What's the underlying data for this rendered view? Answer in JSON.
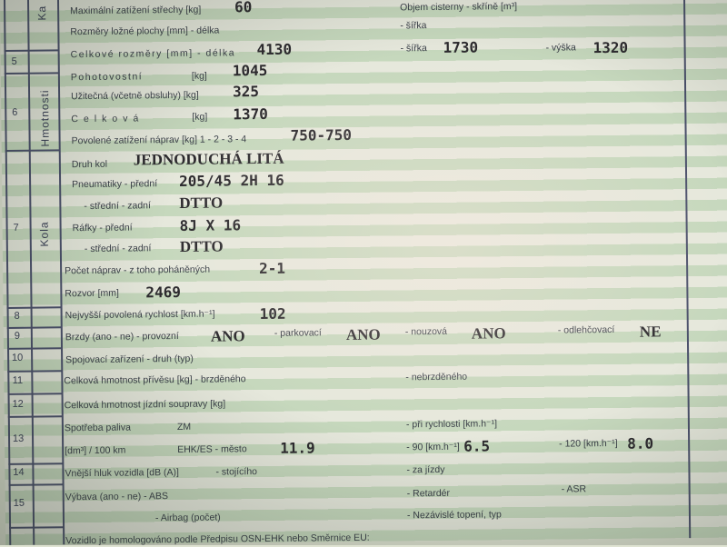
{
  "section_labels": {
    "ka": "Ka",
    "hmotnosti": "Hmotnosti",
    "kola": "Kola"
  },
  "row_numbers": [
    "5",
    "6",
    "7",
    "8",
    "9",
    "10",
    "11",
    "12",
    "13",
    "14",
    "15"
  ],
  "fields": {
    "strecha_label": "Maximální zatížení střechy [kg]",
    "strecha_value": "60",
    "cisterna_label": "Objem cisterny - skříně [m³]",
    "lozna_delka_label": "Rozměry ložné plochy [mm] - délka",
    "lozna_sirka_label": "- šířka",
    "celk_delka_label": "Celkové rozměry [mm] - délka",
    "celk_delka_value": "4130",
    "celk_sirka_label": "- šířka",
    "celk_sirka_value": "1730",
    "celk_vyska_label": "- výška",
    "celk_vyska_value": "1320",
    "pohot_label": "Pohotovostní",
    "pohot_unit": "[kg]",
    "pohot_value": "1045",
    "uzit_label": "Užitečná (včetně obsluhy) [kg]",
    "uzit_value": "325",
    "celkova_label": "Celková",
    "celkova_unit": "[kg]",
    "celkova_value": "1370",
    "naprav_zat_label": "Povolené zatížení náprav [kg] 1 - 2 - 3 - 4",
    "naprav_zat_value": "750-750",
    "druh_kol_label": "Druh kol",
    "druh_kol_value": "JEDNODUCHÁ LITÁ",
    "pneu_predni_label": "Pneumatiky - přední",
    "pneu_predni_value": "205/45 2H 16",
    "pneu_zadni_label": "- střední - zadní",
    "pneu_zadni_value": "DTTO",
    "rafky_predni_label": "Ráfky - přední",
    "rafky_predni_value": "8J X 16",
    "rafky_zadni_label": "- střední - zadní",
    "rafky_zadni_value": "DTTO",
    "napravy_label": "Počet náprav - z toho poháněných",
    "napravy_value": "2-1",
    "rozvor_label": "Rozvor [mm]",
    "rozvor_value": "2469",
    "rychlost_label": "Nejvyšší povolená rychlost [km.h⁻¹]",
    "rychlost_value": "102",
    "brzdy_label": "Brzdy (ano - ne) - provozní",
    "brzdy_provozni": "ANO",
    "parkovaci_label": "- parkovací",
    "brzdy_parkovaci": "ANO",
    "nouzova_label": "- nouzová",
    "brzdy_nouzova": "ANO",
    "odlehcovaci_label": "- odlehčovací",
    "brzdy_odlehcovaci": "NE",
    "spojovaci_label": "Spojovací zařízení - druh (typ)",
    "privesu_label": "Celková hmotnost přívěsu [kg] - brzděného",
    "nebrzdeneho_label": "- nebrzděného",
    "soupravy_label": "Celková hmotnost jízdní soupravy [kg]",
    "spotreba_label": "Spotřeba paliva",
    "spotreba_zm": "ZM",
    "pri_rychlosti_label": "- při rychlosti [km.h⁻¹]",
    "dm3_label": "[dm³] / 100 km",
    "mesto_label": "EHK/ES - město",
    "mesto_value": "11.9",
    "r90_label": "- 90 [km.h⁻¹]",
    "r90_value": "6.5",
    "r120_label": "- 120 [km.h⁻¹]",
    "r120_value": "8.0",
    "hluk_label": "Vnější hluk vozidla [dB (A)]",
    "stojiciho_label": "- stojícího",
    "za_jizdy_label": "- za jízdy",
    "vybava_label": "Výbava (ano - ne) - ABS",
    "retarder_label": "- Retardér",
    "asr_label": "- ASR",
    "airbag_label": "- Airbag (počet)",
    "topeni_label": "- Nezávislé topení, typ",
    "homologace_label": "Vozidlo je homologováno podle Předpisu OSN-EHK nebo Směrnice EU:"
  }
}
